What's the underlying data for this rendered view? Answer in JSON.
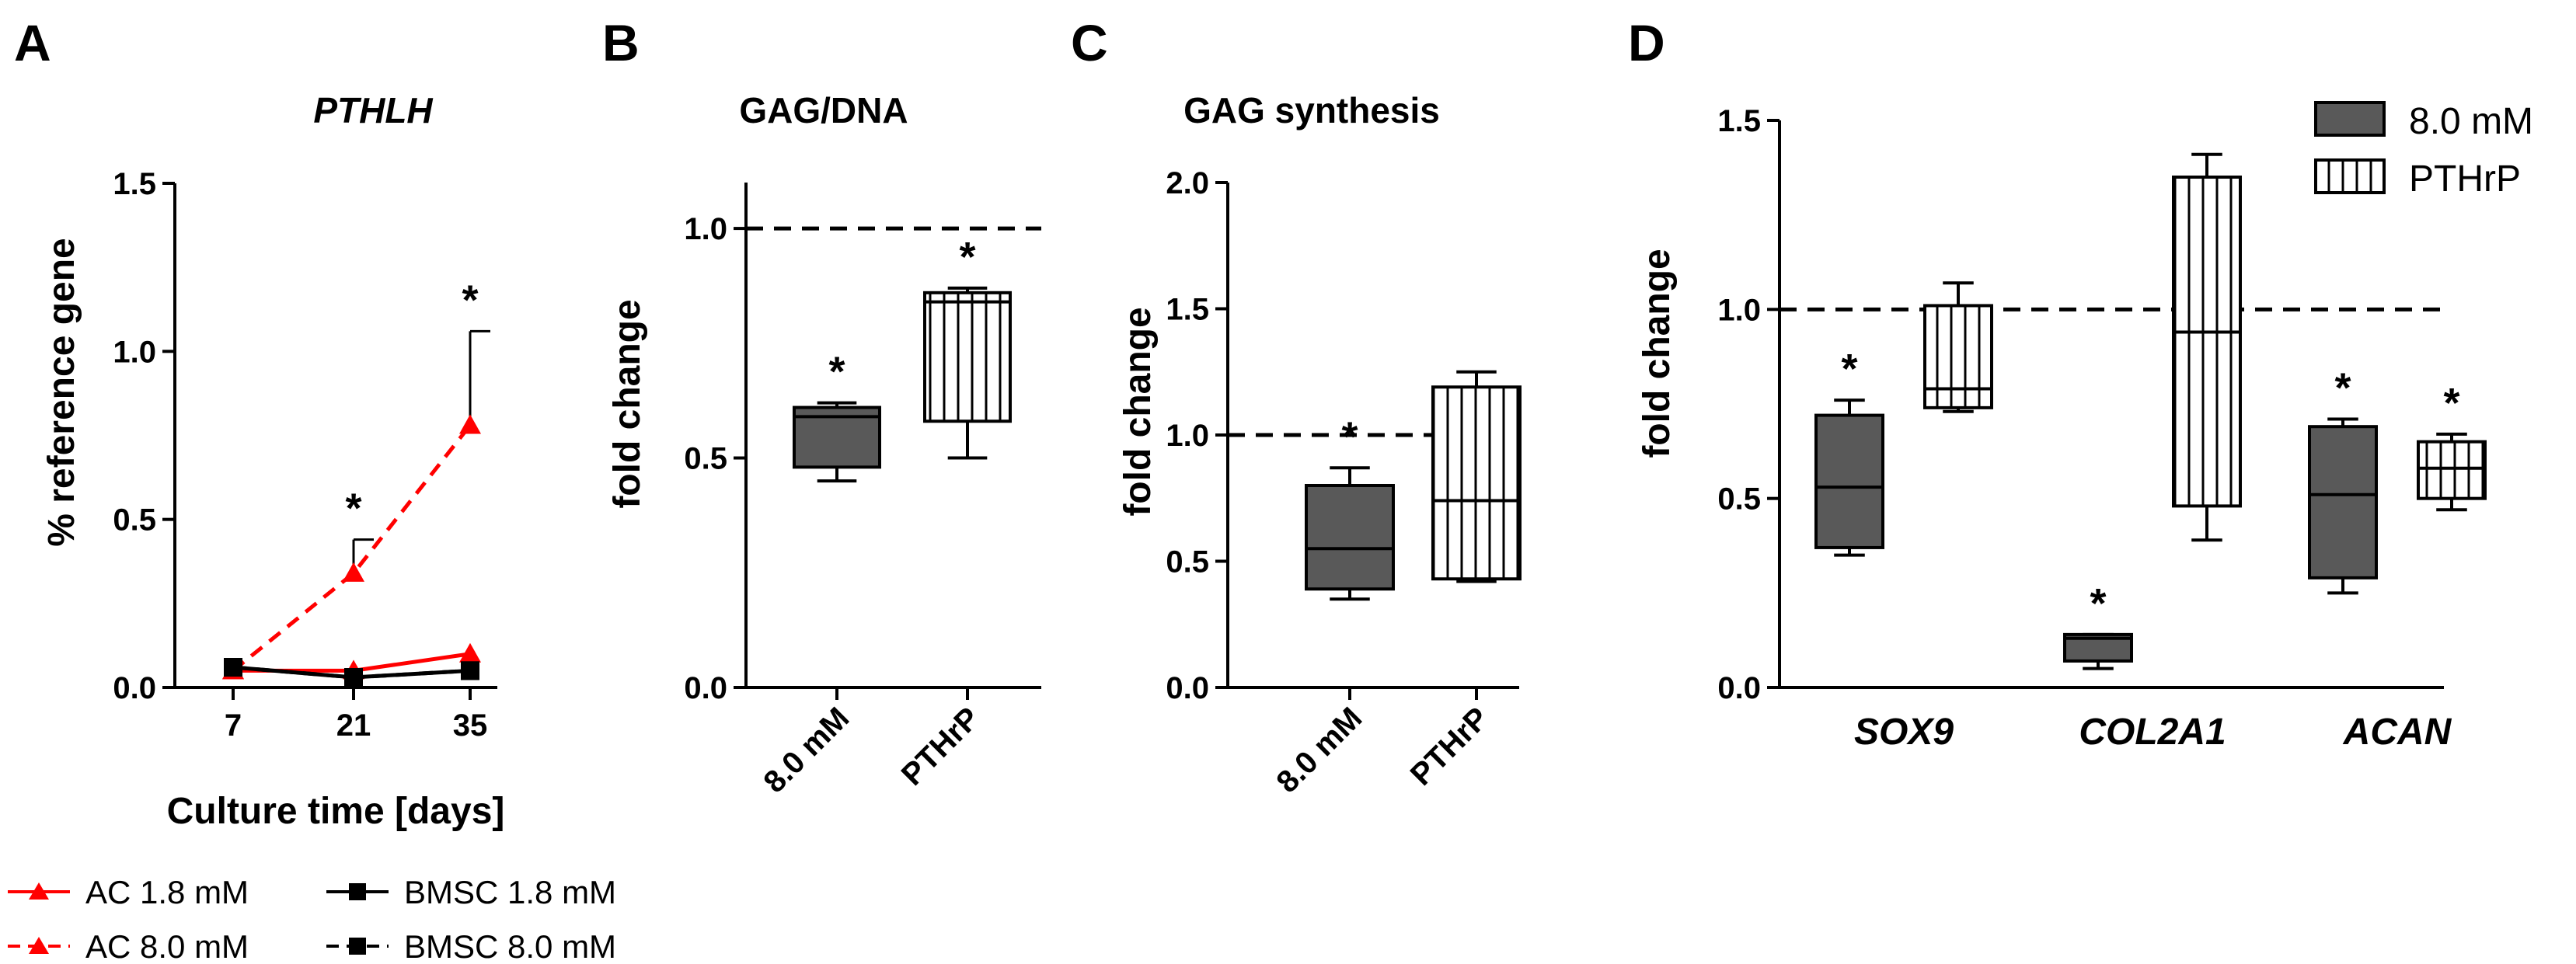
{
  "colors": {
    "ac": "#ff0000",
    "bmsc": "#000000",
    "dark_box": "#595959",
    "hatch_box": "#ffffff"
  },
  "panels": {
    "A": {
      "letter": "A",
      "title": "PTHLH"
    },
    "B": {
      "letter": "B",
      "title": "GAG/DNA"
    },
    "C": {
      "letter": "C",
      "title": "GAG synthesis"
    },
    "D": {
      "letter": "D"
    }
  },
  "legend_A": {
    "ac_18": "AC 1.8 mM",
    "ac_80": "AC 8.0 mM",
    "bmsc_18": "BMSC 1.8 mM",
    "bmsc_80": "BMSC 8.0 mM"
  },
  "legend_D": {
    "dark": "8.0 mM",
    "hatch": "PTHrP"
  },
  "chart_data": [
    {
      "panel": "A",
      "type": "line",
      "title": "PTHLH",
      "xlabel": "Culture time [days]",
      "ylabel": "% reference gene",
      "x": [
        7,
        21,
        35
      ],
      "x_ticks": [
        "7",
        "21",
        "35"
      ],
      "y_ticks": [
        "0.0",
        "0.5",
        "1.0",
        "1.5"
      ],
      "ylim": [
        0,
        1.5
      ],
      "series": [
        {
          "name": "AC 1.8 mM",
          "values": [
            0.05,
            0.05,
            0.1
          ],
          "style": "solid",
          "marker": "triangle",
          "color": "#ff0000"
        },
        {
          "name": "AC 8.0 mM",
          "values": [
            0.05,
            0.34,
            0.78
          ],
          "errors": [
            0,
            0.1,
            0.28
          ],
          "style": "dashed",
          "marker": "triangle",
          "color": "#ff0000"
        },
        {
          "name": "BMSC 1.8 mM",
          "values": [
            0.06,
            0.03,
            0.05
          ],
          "style": "solid",
          "marker": "square",
          "color": "#000000"
        },
        {
          "name": "BMSC 8.0 mM",
          "values": [
            0.06,
            0.03,
            0.05
          ],
          "style": "dashed",
          "marker": "square",
          "color": "#000000"
        }
      ],
      "significance": [
        {
          "x": 21,
          "label": "*"
        },
        {
          "x": 35,
          "label": "*"
        }
      ]
    },
    {
      "panel": "B",
      "type": "box",
      "title": "GAG/DNA",
      "ylabel": "fold change",
      "categories": [
        "8.0 mM",
        "PTHrP"
      ],
      "y_ticks": [
        "0.0",
        "0.5",
        "1.0"
      ],
      "ylim": [
        0,
        1.1
      ],
      "reference_line": 1.0,
      "boxes": [
        {
          "category": "8.0 mM",
          "min": 0.45,
          "q1": 0.48,
          "median": 0.59,
          "q3": 0.61,
          "max": 0.62,
          "style": "dark",
          "label": "*"
        },
        {
          "category": "PTHrP",
          "min": 0.5,
          "q1": 0.58,
          "median": 0.84,
          "q3": 0.86,
          "max": 0.87,
          "style": "hatch",
          "label": "*"
        }
      ]
    },
    {
      "panel": "C",
      "type": "box",
      "title": "GAG synthesis",
      "ylabel": "fold change",
      "categories": [
        "8.0 mM",
        "PTHrP"
      ],
      "y_ticks": [
        "0.0",
        "0.5",
        "1.0",
        "1.5",
        "2.0"
      ],
      "ylim": [
        0,
        2.0
      ],
      "reference_line": 1.0,
      "boxes": [
        {
          "category": "8.0 mM",
          "min": 0.35,
          "q1": 0.39,
          "median": 0.55,
          "q3": 0.8,
          "max": 0.87,
          "style": "dark",
          "label": "*"
        },
        {
          "category": "PTHrP",
          "min": 0.42,
          "q1": 0.43,
          "median": 0.74,
          "q3": 1.19,
          "max": 1.25,
          "style": "hatch",
          "label": ""
        }
      ]
    },
    {
      "panel": "D",
      "type": "box",
      "ylabel": "fold change",
      "categories": [
        "SOX9",
        "COL2A1",
        "ACAN"
      ],
      "y_ticks": [
        "0.0",
        "0.5",
        "1.0",
        "1.5"
      ],
      "ylim": [
        0,
        1.5
      ],
      "reference_line": 1.0,
      "series": [
        {
          "name": "8.0 mM",
          "style": "dark",
          "boxes": [
            {
              "category": "SOX9",
              "min": 0.35,
              "q1": 0.37,
              "median": 0.53,
              "q3": 0.72,
              "max": 0.76,
              "label": "*"
            },
            {
              "category": "COL2A1",
              "min": 0.05,
              "q1": 0.07,
              "median": 0.13,
              "q3": 0.14,
              "max": 0.14,
              "label": "*"
            },
            {
              "category": "ACAN",
              "min": 0.25,
              "q1": 0.29,
              "median": 0.51,
              "q3": 0.69,
              "max": 0.71,
              "label": "*"
            }
          ]
        },
        {
          "name": "PTHrP",
          "style": "hatch",
          "boxes": [
            {
              "category": "SOX9",
              "min": 0.73,
              "q1": 0.74,
              "median": 0.79,
              "q3": 1.01,
              "max": 1.07,
              "label": ""
            },
            {
              "category": "COL2A1",
              "min": 0.39,
              "q1": 0.48,
              "median": 0.94,
              "q3": 1.35,
              "max": 1.41,
              "label": ""
            },
            {
              "category": "ACAN",
              "min": 0.47,
              "q1": 0.5,
              "median": 0.58,
              "q3": 0.65,
              "max": 0.67,
              "label": "*"
            }
          ]
        }
      ]
    }
  ]
}
